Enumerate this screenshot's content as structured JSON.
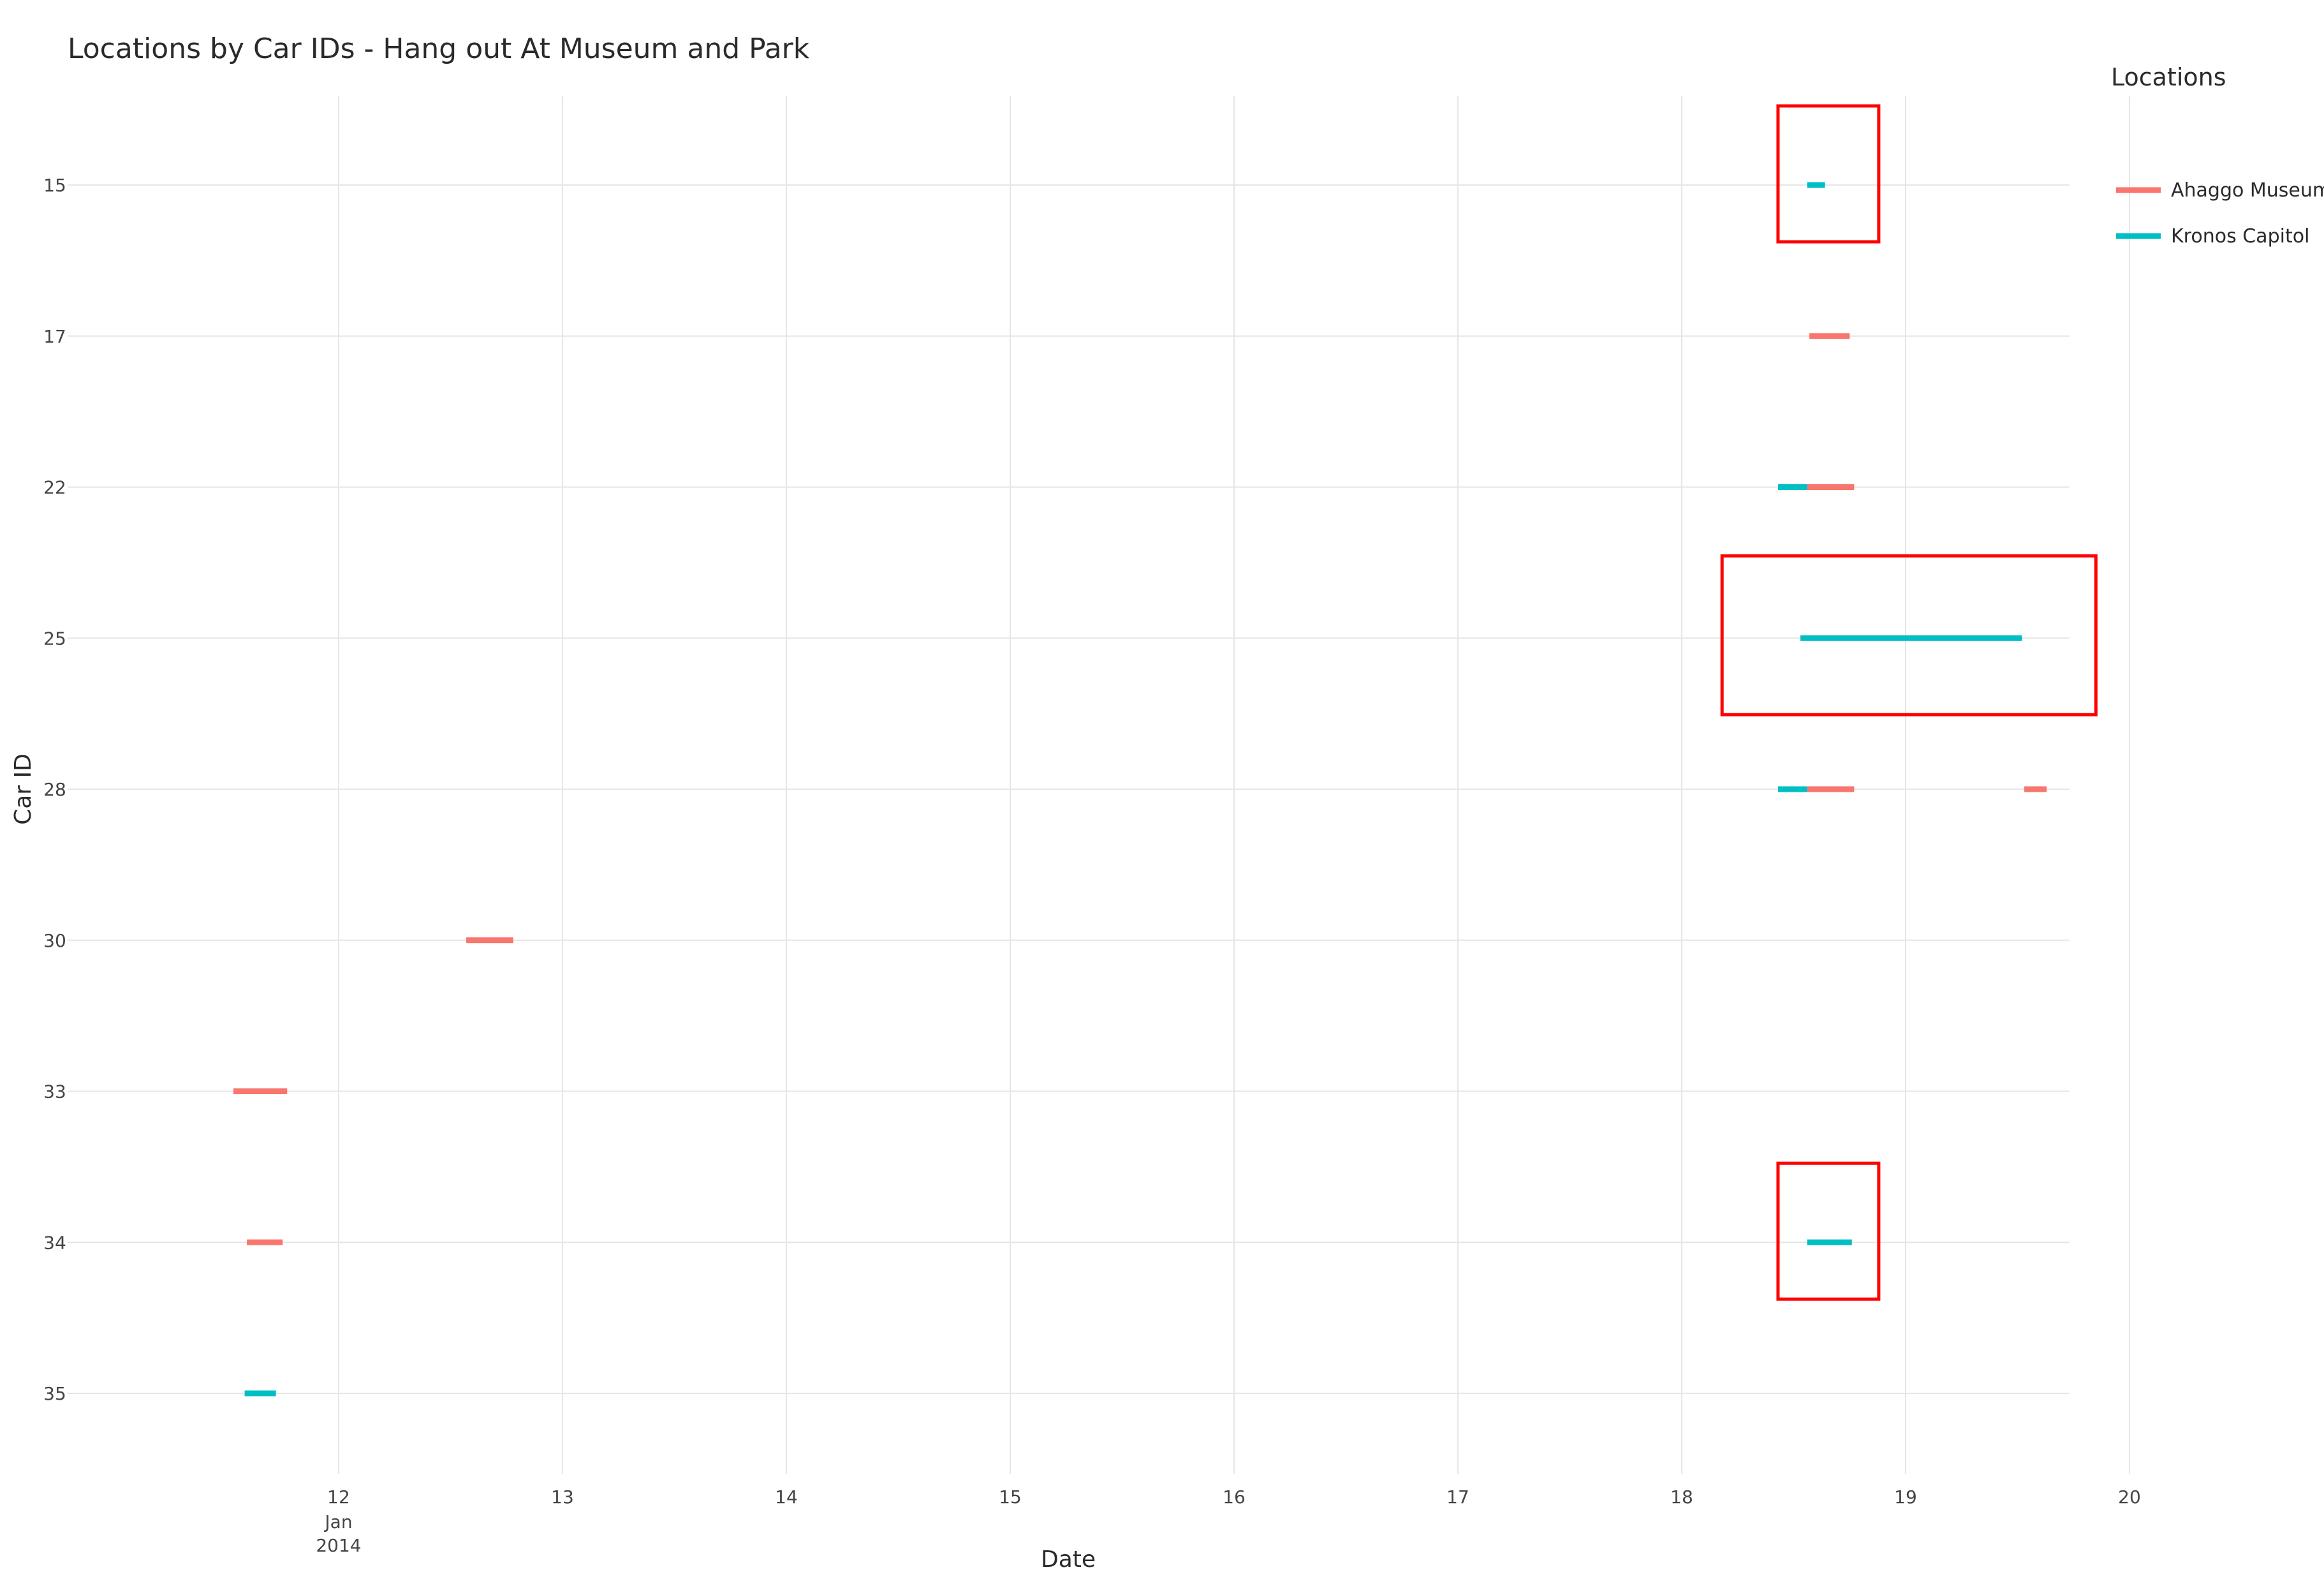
{
  "chart_data": {
    "type": "timeline",
    "title": "Locations by Car IDs - Hang out At Museum and Park",
    "xlabel": "Date",
    "ylabel": "Car ID",
    "x_unit": "day of January 2014",
    "xlim": [
      11.0,
      20.05
    ],
    "x_ticks": [
      {
        "value": 12,
        "label": "12"
      },
      {
        "value": 13,
        "label": "13"
      },
      {
        "value": 14,
        "label": "14"
      },
      {
        "value": 15,
        "label": "15"
      },
      {
        "value": 16,
        "label": "16"
      },
      {
        "value": 17,
        "label": "17"
      },
      {
        "value": 18,
        "label": "18"
      },
      {
        "value": 19,
        "label": "19"
      },
      {
        "value": 20,
        "label": "20"
      }
    ],
    "x_tick_sublabels": [
      "Jan",
      "2014"
    ],
    "categories": [
      "15",
      "17",
      "22",
      "25",
      "28",
      "30",
      "33",
      "34",
      "35"
    ],
    "grid": true,
    "legend": {
      "title": "Locations",
      "position": "top-right"
    },
    "series": [
      {
        "name": "Ahaggo Museum",
        "color": "#f8766d",
        "segments": [
          {
            "car": "17",
            "start": 18.57,
            "end": 18.75
          },
          {
            "car": "22",
            "start": 18.56,
            "end": 18.77
          },
          {
            "car": "28",
            "start": 18.56,
            "end": 18.77
          },
          {
            "car": "28",
            "start": 19.53,
            "end": 19.63
          },
          {
            "car": "30",
            "start": 12.57,
            "end": 12.78
          },
          {
            "car": "33",
            "start": 11.53,
            "end": 11.77
          },
          {
            "car": "34",
            "start": 11.59,
            "end": 11.75
          }
        ]
      },
      {
        "name": "Kronos Capitol",
        "color": "#00bfc4",
        "segments": [
          {
            "car": "15",
            "start": 18.56,
            "end": 18.64
          },
          {
            "car": "22",
            "start": 18.43,
            "end": 18.56
          },
          {
            "car": "25",
            "start": 18.53,
            "end": 19.52
          },
          {
            "car": "28",
            "start": 18.43,
            "end": 18.56
          },
          {
            "car": "34",
            "start": 18.56,
            "end": 18.76
          },
          {
            "car": "35",
            "start": 11.58,
            "end": 11.72
          }
        ]
      }
    ],
    "highlight_boxes": [
      {
        "x0": 18.43,
        "x1": 18.88,
        "y_from": "15",
        "y_to": "15",
        "color": "#ff0000"
      },
      {
        "x0": 18.18,
        "x1": 19.85,
        "y_from": "25",
        "y_to": "25",
        "color": "#ff0000"
      },
      {
        "x0": 18.43,
        "x1": 18.88,
        "y_from": "34",
        "y_to": "34",
        "color": "#ff0000"
      }
    ]
  }
}
